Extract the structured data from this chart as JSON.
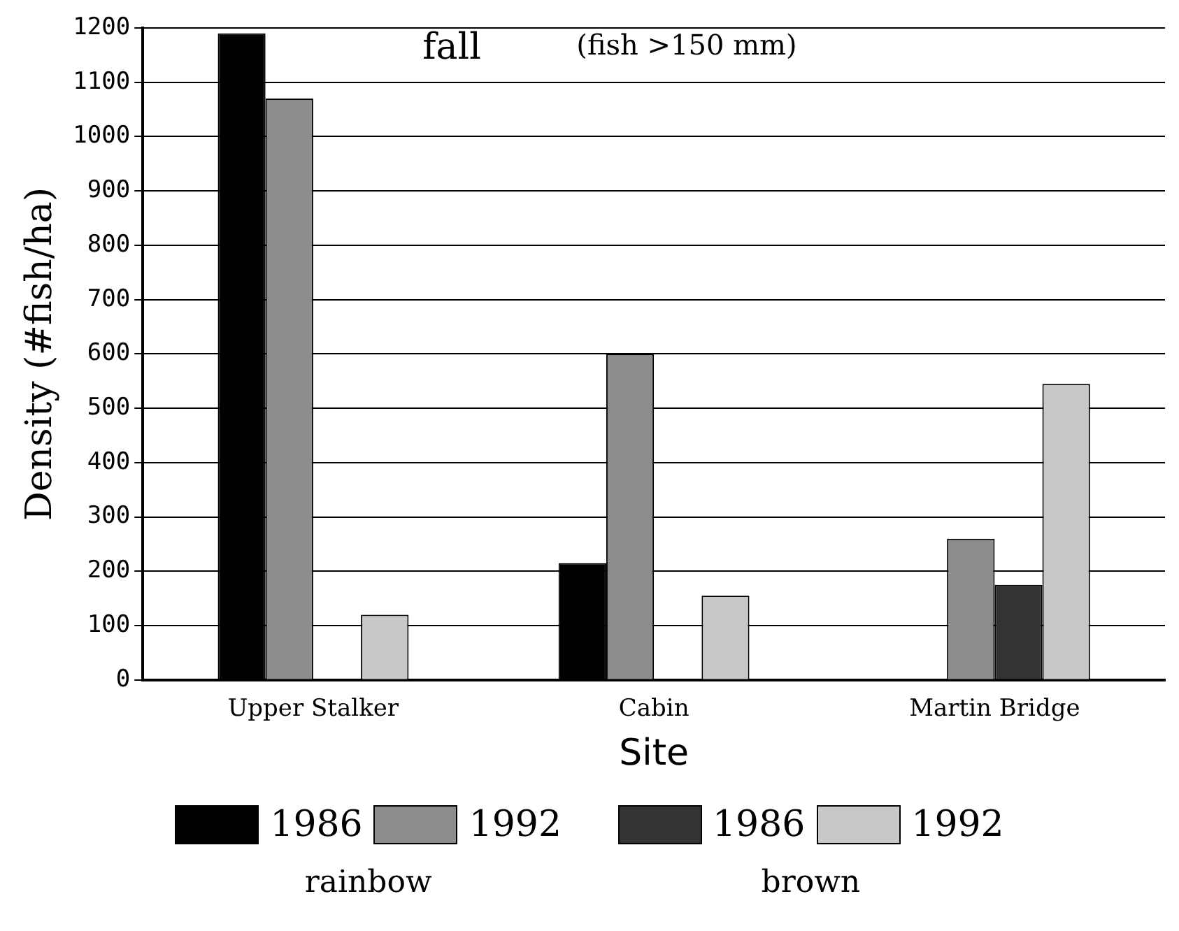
{
  "chart_data": {
    "type": "bar",
    "title": "fall",
    "subtitle": "(fish >150 mm)",
    "xlabel": "Site",
    "ylabel": "Density (#fish/ha)",
    "categories": [
      "Upper Stalker",
      "Cabin",
      "Martin Bridge"
    ],
    "series": [
      {
        "name": "1986",
        "color": "#000000",
        "values": [
          1190,
          215,
          null
        ]
      },
      {
        "name": "1992",
        "color": "#8c8c8c",
        "values": [
          1070,
          600,
          260
        ]
      },
      {
        "name": "1986",
        "color": "#333333",
        "values": [
          null,
          null,
          175
        ]
      },
      {
        "name": "1992",
        "color": "#c8c8c8",
        "values": [
          120,
          155,
          545
        ]
      }
    ],
    "ylim": [
      0,
      1200
    ],
    "yticks": [
      0,
      100,
      200,
      300,
      400,
      500,
      600,
      700,
      800,
      900,
      1000,
      1100,
      1200
    ],
    "grid": "y",
    "legend": "bottom",
    "annotations": [
      "rainbow",
      "brown"
    ]
  }
}
